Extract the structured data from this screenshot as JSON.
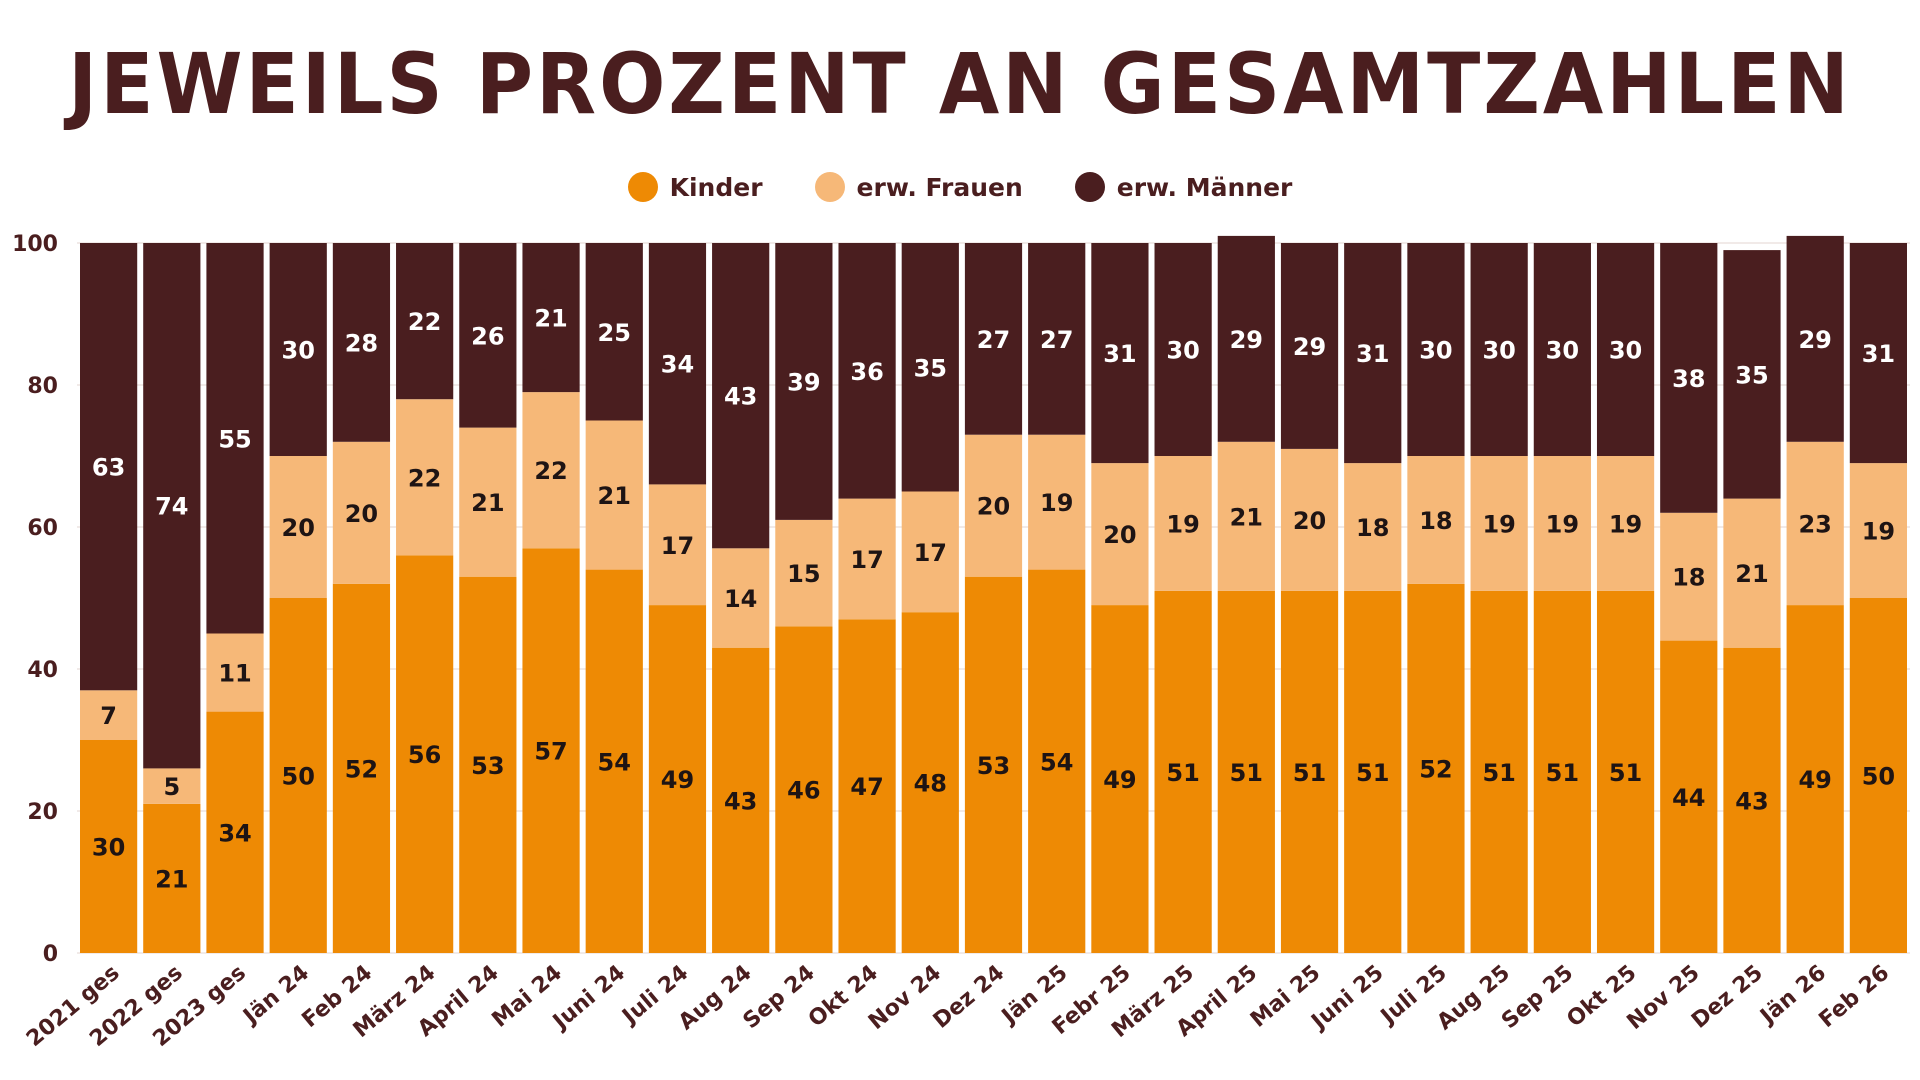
{
  "chart_data": {
    "type": "bar",
    "stacked": true,
    "title": "JEWEILS PROZENT AN GESAMTZAHLEN",
    "legend_position": "top-center",
    "ylim": [
      0,
      100
    ],
    "yticks": [
      "0",
      "20",
      "40",
      "60",
      "80",
      "100"
    ],
    "categories": [
      "2021 ges",
      "2022 ges",
      "2023 ges",
      "Jän 24",
      "Feb 24",
      "März 24",
      "April 24",
      "Mai 24",
      "Juni 24",
      "Juli 24",
      "Aug 24",
      "Sep 24",
      "Okt 24",
      "Nov 24",
      "Dez 24",
      "Jän 25",
      "Febr 25",
      "März 25",
      "April 25",
      "Mai 25",
      "Juni 25",
      "Juli 25",
      "Aug 25",
      "Sep 25",
      "Okt 25",
      "Nov 25",
      "Dez 25",
      "Jän 26",
      "Feb 26"
    ],
    "series": [
      {
        "name": "Kinder",
        "color": "#ee8a04",
        "values": [
          30,
          21,
          34,
          50,
          52,
          56,
          53,
          57,
          54,
          49,
          43,
          46,
          47,
          48,
          53,
          54,
          49,
          51,
          51,
          51,
          51,
          52,
          51,
          51,
          51,
          44,
          43,
          49,
          50
        ]
      },
      {
        "name": "erw. Frauen",
        "color": "#f6b878",
        "values": [
          7,
          5,
          11,
          20,
          20,
          22,
          21,
          22,
          21,
          17,
          14,
          15,
          17,
          17,
          20,
          19,
          20,
          19,
          21,
          20,
          18,
          18,
          19,
          19,
          19,
          18,
          21,
          23,
          19
        ]
      },
      {
        "name": "erw. Männer",
        "color": "#4a1e1f",
        "values": [
          63,
          74,
          55,
          30,
          28,
          22,
          26,
          21,
          25,
          34,
          43,
          39,
          36,
          35,
          27,
          27,
          31,
          30,
          29,
          29,
          31,
          30,
          30,
          30,
          30,
          38,
          35,
          29,
          31
        ]
      }
    ]
  }
}
